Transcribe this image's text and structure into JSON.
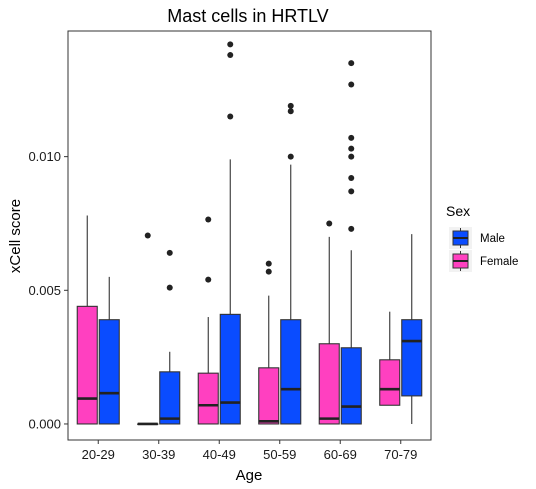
{
  "chart_data": {
    "type": "boxplot",
    "title": "Mast cells in HRTLV",
    "xlabel": "Age",
    "ylabel": "xCell score",
    "ylim": [
      -0.0006,
      0.0147
    ],
    "yticks": [
      0.0,
      0.005,
      0.01
    ],
    "ytick_labels": [
      "0.000",
      "0.005",
      "0.010"
    ],
    "categories": [
      "20-29",
      "30-39",
      "40-49",
      "50-59",
      "60-69",
      "70-79"
    ],
    "legend": {
      "title": "Sex",
      "position": "right",
      "entries": [
        {
          "label": "Male",
          "color": "#0a4cff"
        },
        {
          "label": "Female",
          "color": "#ff40c0"
        }
      ]
    },
    "grid": false,
    "series": [
      {
        "key": "female",
        "color": "#ff40c0",
        "boxes": [
          {
            "whisker_low": 0.0,
            "q1": 0.0,
            "median": 0.00095,
            "q3": 0.0044,
            "whisker_high": 0.0078,
            "outliers": []
          },
          {
            "whisker_low": 0.0,
            "q1": 0.0,
            "median": 0.0,
            "q3": 0.0,
            "whisker_high": 0.0,
            "outliers": [
              0.00705
            ]
          },
          {
            "whisker_low": 0.0,
            "q1": 0.0,
            "median": 0.0007,
            "q3": 0.0019,
            "whisker_high": 0.004,
            "outliers": [
              0.0054,
              0.00765
            ]
          },
          {
            "whisker_low": 0.0,
            "q1": 0.0,
            "median": 0.0001,
            "q3": 0.0021,
            "whisker_high": 0.0048,
            "outliers": [
              0.0057,
              0.006
            ]
          },
          {
            "whisker_low": 0.0,
            "q1": 0.0,
            "median": 0.0002,
            "q3": 0.003,
            "whisker_high": 0.007,
            "outliers": [
              0.0075
            ]
          },
          {
            "whisker_low": 0.0007,
            "q1": 0.0007,
            "median": 0.0013,
            "q3": 0.0024,
            "whisker_high": 0.0042,
            "outliers": []
          }
        ]
      },
      {
        "key": "male",
        "color": "#0a4cff",
        "boxes": [
          {
            "whisker_low": 0.0,
            "q1": 0.0,
            "median": 0.00115,
            "q3": 0.0039,
            "whisker_high": 0.0055,
            "outliers": []
          },
          {
            "whisker_low": 0.0,
            "q1": 0.0,
            "median": 0.0002,
            "q3": 0.00195,
            "whisker_high": 0.0027,
            "outliers": [
              0.0051,
              0.0064
            ]
          },
          {
            "whisker_low": 0.0,
            "q1": 0.0,
            "median": 0.0008,
            "q3": 0.0041,
            "whisker_high": 0.0099,
            "outliers": [
              0.0115,
              0.0138,
              0.0142
            ]
          },
          {
            "whisker_low": 0.0,
            "q1": 0.0,
            "median": 0.0013,
            "q3": 0.0039,
            "whisker_high": 0.0097,
            "outliers": [
              0.01,
              0.0117,
              0.0119
            ]
          },
          {
            "whisker_low": 0.0,
            "q1": 0.0,
            "median": 0.00065,
            "q3": 0.00285,
            "whisker_high": 0.0065,
            "outliers": [
              0.0073,
              0.0087,
              0.0092,
              0.01,
              0.0103,
              0.0107,
              0.0127,
              0.0135
            ]
          },
          {
            "whisker_low": 0.0,
            "q1": 0.00105,
            "median": 0.0031,
            "q3": 0.0039,
            "whisker_high": 0.0071,
            "outliers": []
          }
        ]
      }
    ]
  }
}
